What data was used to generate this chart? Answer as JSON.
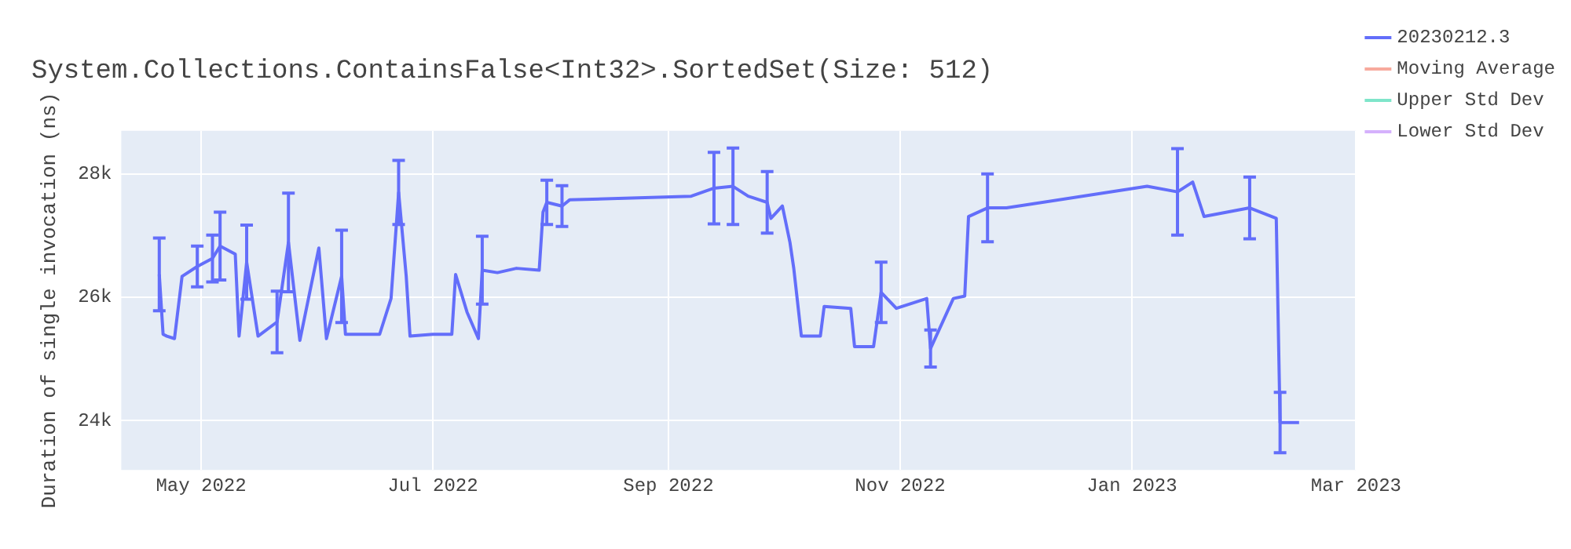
{
  "chart_data": {
    "type": "line",
    "title": "System.Collections.ContainsFalse<Int32>.SortedSet(Size: 512)",
    "ylabel": "Duration of single invocation (ns)",
    "xlim": [
      "2022-04-10",
      "2023-03-01"
    ],
    "xticks": [
      {
        "value": "2022-05-01",
        "label": "May 2022"
      },
      {
        "value": "2022-07-01",
        "label": "Jul 2022"
      },
      {
        "value": "2022-09-01",
        "label": "Sep 2022"
      },
      {
        "value": "2022-11-01",
        "label": "Nov 2022"
      },
      {
        "value": "2023-01-01",
        "label": "Jan 2023"
      },
      {
        "value": "2023-03-01",
        "label": "Mar 2023"
      }
    ],
    "ylim": [
      23200,
      28700
    ],
    "yticks": [
      {
        "value": 24000,
        "label": "24k"
      },
      {
        "value": 26000,
        "label": "26k"
      },
      {
        "value": 28000,
        "label": "28k"
      }
    ],
    "grid": true,
    "legend": "top right",
    "marker": "none",
    "line_style": "solid",
    "series": [
      {
        "name": "20230212.3",
        "color": "#636efa",
        "x": [
          "2022-04-20",
          "2022-04-21",
          "2022-04-22",
          "2022-04-24",
          "2022-04-26",
          "2022-04-30",
          "2022-05-04",
          "2022-05-06",
          "2022-05-10",
          "2022-05-11",
          "2022-05-13",
          "2022-05-16",
          "2022-05-21",
          "2022-05-24",
          "2022-05-27",
          "2022-06-01",
          "2022-06-03",
          "2022-06-07",
          "2022-06-08",
          "2022-06-17",
          "2022-06-20",
          "2022-06-22",
          "2022-06-24",
          "2022-06-25",
          "2022-07-01",
          "2022-07-06",
          "2022-07-07",
          "2022-07-10",
          "2022-07-13",
          "2022-07-14",
          "2022-07-18",
          "2022-07-23",
          "2022-07-29",
          "2022-07-30",
          "2022-07-31",
          "2022-08-04",
          "2022-08-06",
          "2022-09-07",
          "2022-09-13",
          "2022-09-18",
          "2022-09-22",
          "2022-09-27",
          "2022-09-28",
          "2022-10-01",
          "2022-10-03",
          "2022-10-04",
          "2022-10-06",
          "2022-10-11",
          "2022-10-12",
          "2022-10-19",
          "2022-10-20",
          "2022-10-25",
          "2022-10-27",
          "2022-10-31",
          "2022-11-08",
          "2022-11-09",
          "2022-11-15",
          "2022-11-18",
          "2022-11-19",
          "2022-11-24",
          "2022-11-29",
          "2023-01-05",
          "2023-01-13",
          "2023-01-17",
          "2023-01-20",
          "2023-02-01",
          "2023-02-08",
          "2023-02-09",
          "2023-02-14"
        ],
        "values": [
          26370,
          25400,
          25370,
          25330,
          26340,
          26500,
          26630,
          26830,
          26700,
          25370,
          26570,
          25370,
          25600,
          26890,
          25300,
          26800,
          25330,
          26340,
          25400,
          25400,
          25980,
          27700,
          26340,
          25370,
          25400,
          25400,
          26370,
          25760,
          25330,
          26440,
          26400,
          26470,
          26440,
          27380,
          27540,
          27480,
          27580,
          27640,
          27770,
          27800,
          27640,
          27540,
          27280,
          27480,
          26890,
          26470,
          25370,
          25370,
          25850,
          25820,
          25200,
          25200,
          26080,
          25820,
          25980,
          25170,
          25980,
          26020,
          27310,
          27450,
          27450,
          27800,
          27710,
          27870,
          27310,
          27450,
          27280,
          23970,
          23970
        ],
        "errors": [
          590,
          null,
          null,
          null,
          null,
          330,
          380,
          550,
          null,
          null,
          600,
          null,
          500,
          800,
          null,
          null,
          null,
          750,
          null,
          null,
          null,
          520,
          null,
          null,
          null,
          null,
          null,
          null,
          null,
          550,
          null,
          null,
          null,
          null,
          360,
          330,
          null,
          null,
          580,
          620,
          null,
          500,
          null,
          null,
          null,
          null,
          null,
          null,
          null,
          null,
          null,
          null,
          490,
          null,
          null,
          300,
          null,
          null,
          null,
          550,
          null,
          null,
          700,
          null,
          null,
          500,
          null,
          490,
          null
        ]
      },
      {
        "name": "Moving Average",
        "color": "#f7aa9d"
      },
      {
        "name": "Upper Std Dev",
        "color": "#7fe5ca"
      },
      {
        "name": "Lower Std Dev",
        "color": "#d5b1fc"
      }
    ]
  }
}
